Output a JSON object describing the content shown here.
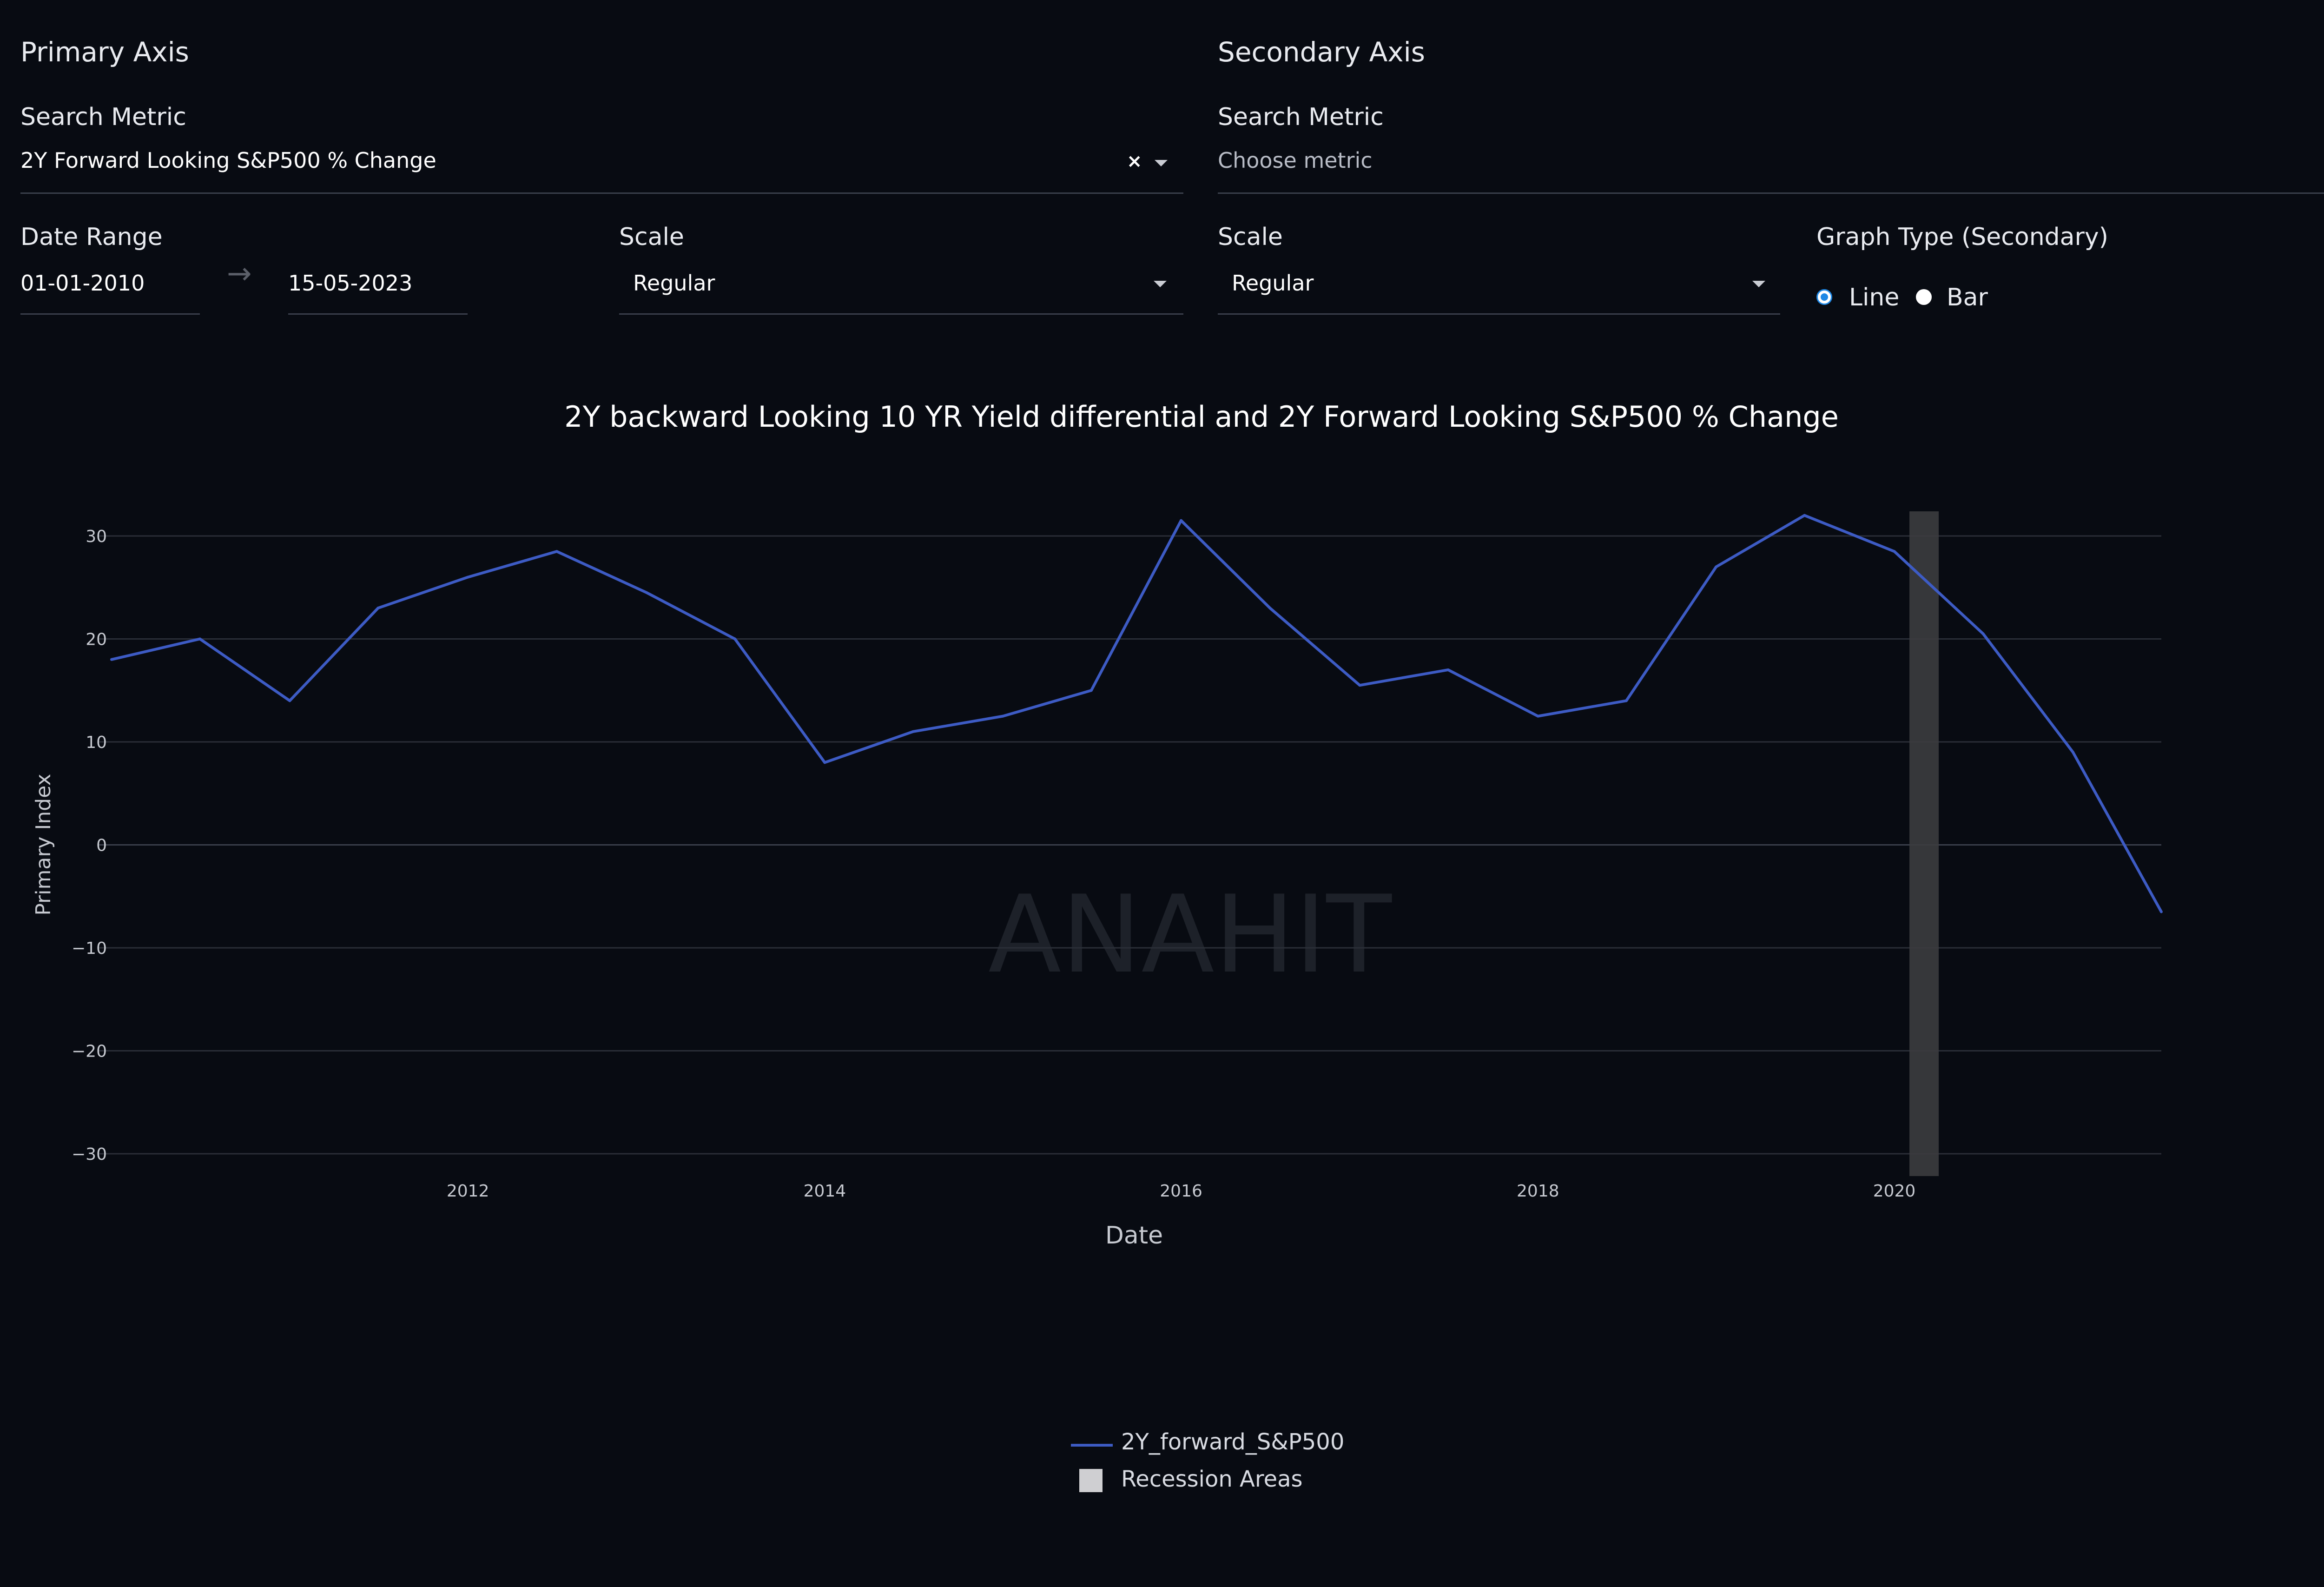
{
  "primary": {
    "section_title": "Primary Axis",
    "search_label": "Search Metric",
    "search_value": "2Y Forward Looking S&P500 % Change",
    "date_range_label": "Date Range",
    "date_start": "01-01-2010",
    "date_end": "15-05-2023",
    "scale_label": "Scale",
    "scale_value": "Regular"
  },
  "secondary": {
    "section_title": "Secondary Axis",
    "search_label": "Search Metric",
    "search_placeholder": "Choose metric",
    "scale_label": "Scale",
    "scale_value": "Regular",
    "graph_type_label": "Graph Type (Secondary)",
    "options": [
      "Line",
      "Bar"
    ],
    "selected": "Line"
  },
  "colors": {
    "background": "#080b12",
    "line": "#3d5bc4",
    "recession": "#3c3c3f",
    "radio_selected": "#1e88e5"
  },
  "watermark": "ANAHIT",
  "chart_data": {
    "type": "line",
    "title": "2Y backward Looking 10 YR Yield differential and 2Y Forward Looking S&P500 % Change",
    "xlabel": "Date",
    "ylabel": "Primary Index",
    "ylim": [
      -30,
      32
    ],
    "xlim": [
      "2010-01-01",
      "2021-07-01"
    ],
    "y_ticks": [
      -30,
      -20,
      -10,
      0,
      10,
      20,
      30
    ],
    "x_ticks": [
      "2012",
      "2014",
      "2016",
      "2018",
      "2020"
    ],
    "grid": true,
    "legend_position": "bottom-center",
    "series": [
      {
        "name": "2Y_forward_S&P500",
        "color": "#3d5bc4",
        "x": [
          "2010-01-01",
          "2010-07-01",
          "2011-01-01",
          "2011-07-01",
          "2012-01-01",
          "2012-07-01",
          "2013-01-01",
          "2013-07-01",
          "2014-01-01",
          "2014-07-01",
          "2015-01-01",
          "2015-07-01",
          "2016-01-01",
          "2016-07-01",
          "2017-01-01",
          "2017-07-01",
          "2018-01-01",
          "2018-07-01",
          "2019-01-01",
          "2019-07-01",
          "2020-01-01",
          "2020-07-01",
          "2021-01-01",
          "2021-07-01"
        ],
        "y": [
          18,
          20,
          14,
          23,
          26,
          28.5,
          24.5,
          20,
          8,
          11,
          12.5,
          15,
          31.5,
          23,
          15.5,
          17,
          12.5,
          14,
          27,
          32,
          28.5,
          20.5,
          9,
          -6.5
        ]
      }
    ],
    "shapes": [
      {
        "name": "Recession Areas",
        "x0": "2020-02-01",
        "x1": "2020-04-01",
        "color": "#3c3c3f"
      }
    ]
  }
}
